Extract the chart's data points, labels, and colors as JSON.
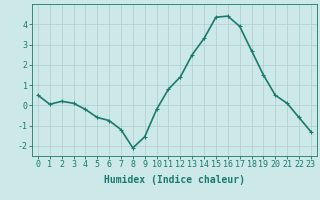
{
  "x": [
    0,
    1,
    2,
    3,
    4,
    5,
    6,
    7,
    8,
    9,
    10,
    11,
    12,
    13,
    14,
    15,
    16,
    17,
    18,
    19,
    20,
    21,
    22,
    23
  ],
  "y": [
    0.5,
    0.05,
    0.2,
    0.1,
    -0.2,
    -0.6,
    -0.75,
    -1.2,
    -2.1,
    -1.55,
    -0.2,
    0.8,
    1.4,
    2.5,
    3.3,
    4.35,
    4.4,
    3.9,
    2.7,
    1.5,
    0.5,
    0.1,
    -0.6,
    -1.3
  ],
  "line_color": "#1a7a6e",
  "marker": "+",
  "marker_size": 3,
  "bg_color": "#cce8e8",
  "grid_color": "#b0cccc",
  "xlabel": "Humidex (Indice chaleur)",
  "ylim": [
    -2.5,
    5.0
  ],
  "xlim": [
    -0.5,
    23.5
  ],
  "yticks": [
    -2,
    -1,
    0,
    1,
    2,
    3,
    4
  ],
  "xticks": [
    0,
    1,
    2,
    3,
    4,
    5,
    6,
    7,
    8,
    9,
    10,
    11,
    12,
    13,
    14,
    15,
    16,
    17,
    18,
    19,
    20,
    21,
    22,
    23
  ],
  "label_fontsize": 7,
  "tick_fontsize": 6,
  "line_width": 1.2
}
